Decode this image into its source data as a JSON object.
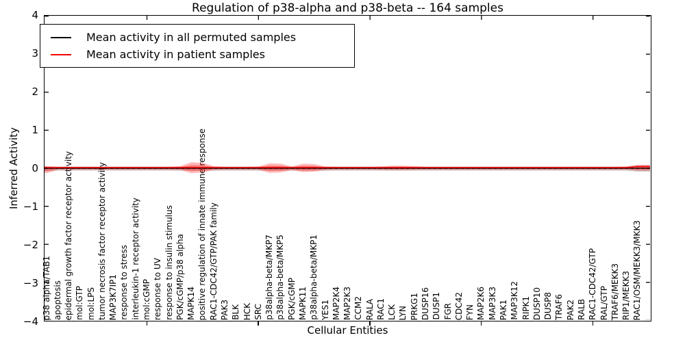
{
  "chart_data": {
    "type": "area",
    "title": "Regulation of p38-alpha and p38-beta -- 164 samples",
    "xlabel": "Cellular Entities",
    "ylabel": "Inferred Activity",
    "ylim": [
      -4,
      4
    ],
    "ytick_labels": [
      "4",
      "3",
      "2",
      "1",
      "0",
      "−1",
      "−2",
      "−3",
      "−4"
    ],
    "ytick_values": [
      4,
      3,
      2,
      1,
      0,
      -1,
      -2,
      -3,
      -4
    ],
    "major_x_tick_indices": [
      9,
      19,
      29,
      39,
      49
    ],
    "grid": false,
    "legend_position": "upper left",
    "categories": [
      "p38 alpha/TAB1",
      "apoptosis",
      "epidermal growth factor receptor activity",
      "mol:GTP",
      "mol:LPS",
      "tumor necrosis factor receptor activity",
      "MAP3K7IP1",
      "response to stress",
      "interleukin-1 receptor activity",
      "mol:cGMP",
      "response to UV",
      "response to insulin stimulus",
      "PGK/cGMP/p38 alpha",
      "MAPK14",
      "positive regulation of innate immune response",
      "RAC1-CDC42/GTP/PAK family",
      "PAK3",
      "BLK",
      "HCK",
      "SRC",
      "p38alpha-beta/MKP7",
      "p38alpha-beta/MKP5",
      "PGK/cGMP",
      "MAPK11",
      "p38alpha-beta/MKP1",
      "YES1",
      "MAP2K4",
      "MAP2K3",
      "CCM2",
      "RALA",
      "RAC1",
      "LCK",
      "LYN",
      "PRKG1",
      "DUSP16",
      "DUSP1",
      "FGR",
      "CDC42",
      "FYN",
      "MAP2K6",
      "MAP3K3",
      "PAK1",
      "MAP3K12",
      "RIPK1",
      "DUSP10",
      "DUSP8",
      "TRAF6",
      "PAK2",
      "RALB",
      "RAC1-CDC42/GTP",
      "RAL/GTP",
      "TRAF6/MEKK3",
      "RIP1/MEKK3",
      "RAC1/OSM/MEKK3/MKK3"
    ],
    "series": [
      {
        "name": "Mean activity in all permuted samples",
        "color": "#000000",
        "values": [
          0,
          0,
          0,
          0,
          0,
          0,
          0,
          0,
          0,
          0,
          0,
          0,
          0,
          0,
          0,
          0,
          0,
          0,
          0,
          0,
          0,
          0,
          0,
          0,
          0,
          0,
          0,
          0,
          0,
          0,
          0,
          0,
          0,
          0,
          0,
          0,
          0,
          0,
          0,
          0,
          0,
          0,
          0,
          0,
          0,
          0,
          0,
          0,
          0,
          0,
          0,
          0,
          0,
          0
        ]
      },
      {
        "name": "Mean activity in patient samples",
        "color": "#ff0000",
        "values": [
          0.02,
          0.02,
          0.02,
          0.02,
          0.02,
          0.02,
          0.02,
          0.02,
          0.02,
          0.02,
          0.02,
          0.02,
          0.02,
          0.02,
          0.02,
          0.02,
          0.02,
          0.02,
          0.02,
          0.02,
          0.02,
          0.02,
          0.02,
          0.02,
          0.02,
          0.02,
          0.02,
          0.02,
          0.02,
          0.02,
          0.02,
          0.02,
          0.02,
          0.02,
          0.02,
          0.02,
          0.02,
          0.02,
          0.02,
          0.02,
          0.02,
          0.02,
          0.02,
          0.02,
          0.02,
          0.02,
          0.02,
          0.02,
          0.02,
          0.02,
          0.02,
          0.02,
          0.02,
          0.045
        ]
      }
    ],
    "bands": [
      {
        "name": "permuted-samples-spread",
        "color": "rgba(110,110,110,0.3)",
        "upper": [
          0.045,
          0.045,
          0.045,
          0.045,
          0.045,
          0.045,
          0.045,
          0.045,
          0.045,
          0.045,
          0.045,
          0.045,
          0.045,
          0.045,
          0.045,
          0.045,
          0.045,
          0.045,
          0.045,
          0.045,
          0.045,
          0.045,
          0.045,
          0.045,
          0.045,
          0.045,
          0.045,
          0.045,
          0.045,
          0.045,
          0.045,
          0.045,
          0.045,
          0.045,
          0.045,
          0.045,
          0.045,
          0.045,
          0.045,
          0.045,
          0.045,
          0.045,
          0.045,
          0.045,
          0.045,
          0.045,
          0.045,
          0.045,
          0.045,
          0.045,
          0.045,
          0.045,
          0.045,
          0.08
        ],
        "lower": [
          -0.08,
          -0.065,
          -0.065,
          -0.065,
          -0.065,
          -0.065,
          -0.065,
          -0.065,
          -0.065,
          -0.065,
          -0.065,
          -0.065,
          -0.065,
          -0.065,
          -0.065,
          -0.065,
          -0.065,
          -0.065,
          -0.065,
          -0.065,
          -0.065,
          -0.065,
          -0.065,
          -0.065,
          -0.065,
          -0.065,
          -0.065,
          -0.065,
          -0.065,
          -0.065,
          -0.065,
          -0.065,
          -0.065,
          -0.065,
          -0.065,
          -0.065,
          -0.065,
          -0.065,
          -0.065,
          -0.065,
          -0.065,
          -0.065,
          -0.065,
          -0.065,
          -0.065,
          -0.065,
          -0.065,
          -0.065,
          -0.065,
          -0.065,
          -0.065,
          -0.065,
          -0.065,
          -0.09
        ]
      },
      {
        "name": "patient-samples-spread",
        "color": "rgba(255,0,0,0.27)",
        "upper": [
          0.06,
          0.04,
          0.04,
          0.04,
          0.04,
          0.04,
          0.04,
          0.04,
          0.04,
          0.04,
          0.04,
          0.04,
          0.06,
          0.16,
          0.14,
          0.06,
          0.04,
          0.04,
          0.04,
          0.05,
          0.13,
          0.12,
          0.05,
          0.12,
          0.11,
          0.05,
          0.04,
          0.04,
          0.04,
          0.04,
          0.05,
          0.07,
          0.07,
          0.06,
          0.04,
          0.04,
          0.04,
          0.04,
          0.04,
          0.04,
          0.04,
          0.04,
          0.04,
          0.04,
          0.04,
          0.04,
          0.04,
          0.04,
          0.04,
          0.04,
          0.04,
          0.04,
          0.05,
          0.09
        ],
        "lower": [
          -0.13,
          -0.04,
          -0.04,
          -0.04,
          -0.04,
          -0.04,
          -0.04,
          -0.04,
          -0.04,
          -0.04,
          -0.04,
          -0.04,
          -0.05,
          -0.13,
          -0.11,
          -0.05,
          -0.04,
          -0.04,
          -0.04,
          -0.045,
          -0.12,
          -0.11,
          -0.05,
          -0.1,
          -0.09,
          -0.05,
          -0.04,
          -0.04,
          -0.04,
          -0.04,
          -0.045,
          -0.05,
          -0.05,
          -0.045,
          -0.04,
          -0.04,
          -0.04,
          -0.04,
          -0.04,
          -0.04,
          -0.04,
          -0.04,
          -0.04,
          -0.04,
          -0.04,
          -0.04,
          -0.04,
          -0.04,
          -0.04,
          -0.04,
          -0.04,
          -0.04,
          -0.04,
          -0.07
        ]
      }
    ],
    "zero_line": {
      "y": 0,
      "style": "dashed",
      "color": "#000000"
    }
  },
  "legend": {
    "entries": [
      {
        "label": "Mean activity in all permuted samples",
        "color": "#000000"
      },
      {
        "label": "Mean activity in patient samples",
        "color": "#ff0000"
      }
    ]
  }
}
